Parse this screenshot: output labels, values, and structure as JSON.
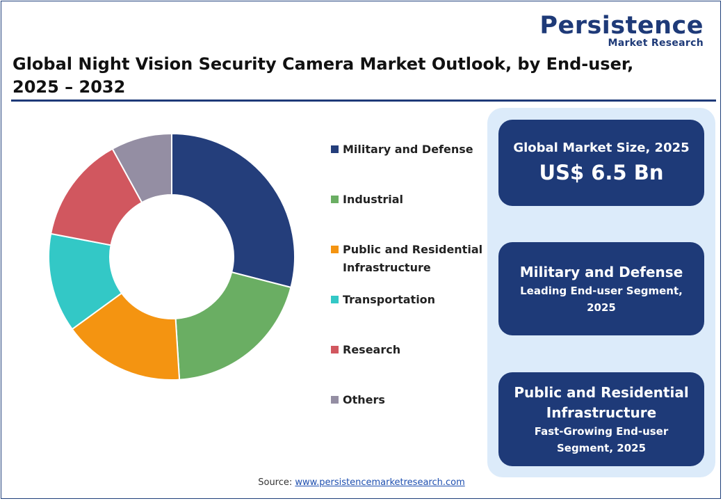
{
  "logo": {
    "main": "Persistence",
    "sub": "Market Research"
  },
  "title": "Global Night Vision Security Camera Market Outlook, by End-user, 2025 – 2032",
  "chart_data": {
    "type": "pie",
    "donut": true,
    "categories": [
      "Military and Defense",
      "Industrial",
      "Public and Residential Infrastructure",
      "Transportation",
      "Research",
      "Others"
    ],
    "values": [
      29,
      20,
      16,
      13,
      14,
      8
    ],
    "colors": [
      "#243e7b",
      "#6aae63",
      "#f49411",
      "#33c8c6",
      "#d1575f",
      "#948ea3"
    ],
    "legend_position": "right"
  },
  "cards": {
    "market_size_label": "Global Market Size, 2025",
    "market_size_value": "US$ 6.5 Bn",
    "leading_segment": "Military and Defense",
    "leading_label": "Leading End-user Segment, 2025",
    "growing_segment": "Public and Residential Infrastructure",
    "growing_label": "Fast-Growing End-user Segment, 2025"
  },
  "source": {
    "label": "Source:",
    "link": "www.persistencemarketresearch.com"
  }
}
